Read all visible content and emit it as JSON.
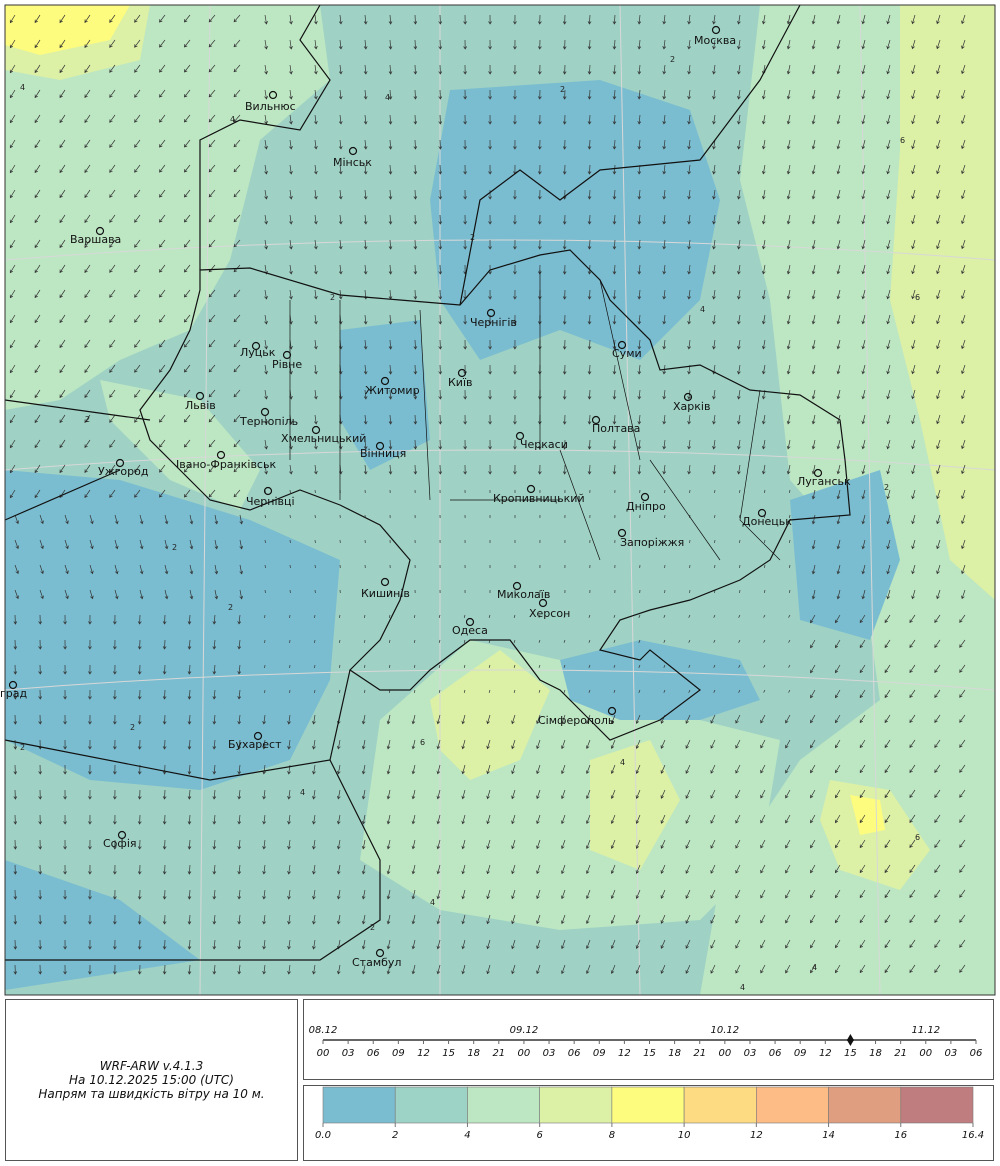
{
  "map": {
    "cities": [
      "Москва",
      "Вильнюс",
      "Мінськ",
      "Варшава",
      "Чернігів",
      "Суми",
      "Луцьк",
      "Рівне",
      "Житомир",
      "Київ",
      "Львів",
      "Тернопіль",
      "Хмельницький",
      "Харків",
      "Полтава",
      "Вінниця",
      "Ужгород",
      "Івано-Франківськ",
      "Черкаси",
      "Луганськ",
      "Чернівці",
      "Кропивницький",
      "Дніпро",
      "Донецьк",
      "Запоріжжя",
      "Кишинів",
      "Миколаїв",
      "Херсон",
      "Одеса",
      "Сімферополь",
      "Бухарест",
      "Софія",
      "Стамбул",
      "град"
    ],
    "contour_labels": [
      4,
      4,
      2,
      4,
      2,
      6,
      2,
      4,
      2,
      2,
      2,
      2,
      2,
      4,
      6,
      6,
      4,
      2,
      4,
      2,
      4,
      6,
      4,
      2
    ]
  },
  "info": {
    "model": "WRF-ARW v.4.1.3",
    "time": "На 10.12.2025 15:00 (UTC)",
    "description": "Напрям та швидкість вітру на 10 м."
  },
  "timeline": {
    "dates": [
      "08.12",
      "09.12",
      "10.12",
      "11.12"
    ],
    "hours": [
      "00",
      "03",
      "06",
      "09",
      "12",
      "15",
      "18",
      "21",
      "00",
      "03",
      "06",
      "09",
      "12",
      "15",
      "18",
      "21",
      "00",
      "03",
      "06",
      "09",
      "12",
      "15",
      "18",
      "21",
      "00",
      "03",
      "06"
    ]
  },
  "legend": {
    "colors": [
      "#7bbdd0",
      "#9dd3c7",
      "#bde7c3",
      "#dcf0a6",
      "#fdfc7e",
      "#fddb82",
      "#fdbb85",
      "#e09e80",
      "#c07d80"
    ],
    "ticks": [
      {
        "value": 0,
        "label": "0.0"
      },
      2,
      4,
      6,
      8,
      10,
      12,
      14,
      16,
      16.4
    ]
  }
}
